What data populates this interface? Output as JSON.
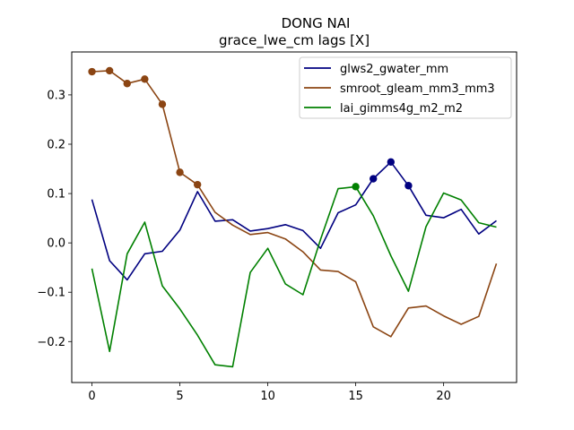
{
  "chart_data": {
    "type": "line",
    "title": "DONG NAI",
    "subtitle": "grace_lwe_cm lags [X]",
    "xlim": [
      -1.15,
      24.15
    ],
    "ylim": [
      -0.283,
      0.387
    ],
    "xticks": [
      0,
      5,
      10,
      15,
      20
    ],
    "yticks": [
      -0.2,
      -0.1,
      0.0,
      0.1,
      0.2,
      0.3
    ],
    "ytick_labels": [
      "−0.2",
      "−0.1",
      "0.0",
      "0.1",
      "0.2",
      "0.3"
    ],
    "legend_position": "top-right",
    "grid": false,
    "x": [
      0,
      1,
      2,
      3,
      4,
      5,
      6,
      7,
      8,
      9,
      10,
      11,
      12,
      13,
      14,
      15,
      16,
      17,
      18,
      19,
      20,
      21,
      22,
      23
    ],
    "series": [
      {
        "name": "glws2_gwater_mm",
        "color": "#000080",
        "values": [
          0.088,
          -0.036,
          -0.075,
          -0.022,
          -0.017,
          0.026,
          0.104,
          0.044,
          0.047,
          0.024,
          0.029,
          0.037,
          0.025,
          -0.011,
          0.061,
          0.077,
          0.13,
          0.164,
          0.116,
          0.056,
          0.051,
          0.068,
          0.018,
          0.045
        ],
        "highlighted_x": [
          16,
          17,
          18
        ]
      },
      {
        "name": "smroot_gleam_mm3_mm3",
        "color": "#8b4513",
        "values": [
          0.347,
          0.349,
          0.323,
          0.332,
          0.281,
          0.143,
          0.118,
          0.062,
          0.036,
          0.017,
          0.021,
          0.008,
          -0.018,
          -0.055,
          -0.058,
          -0.079,
          -0.17,
          -0.19,
          -0.132,
          -0.128,
          -0.148,
          -0.165,
          -0.149,
          -0.042
        ],
        "highlighted_x": [
          0,
          1,
          2,
          3,
          4,
          5,
          6
        ]
      },
      {
        "name": "lai_gimms4g_m2_m2",
        "color": "#008000",
        "values": [
          -0.052,
          -0.22,
          -0.022,
          0.042,
          -0.087,
          -0.134,
          -0.187,
          -0.247,
          -0.251,
          -0.06,
          -0.011,
          -0.083,
          -0.105,
          0.007,
          0.11,
          0.114,
          0.055,
          -0.026,
          -0.098,
          0.033,
          0.101,
          0.087,
          0.041,
          0.032
        ],
        "highlighted_x": [
          15
        ]
      }
    ]
  }
}
